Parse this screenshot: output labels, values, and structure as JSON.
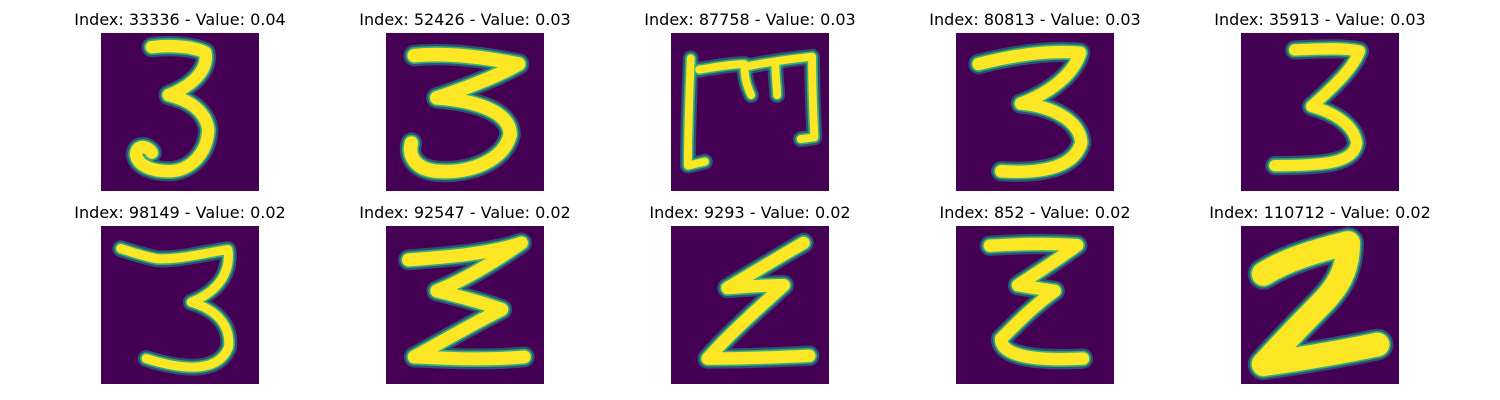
{
  "colors": {
    "background": "#440154",
    "stroke_core": "#fde725",
    "stroke_edge": "#35b779",
    "stroke_mid": "#21918c"
  },
  "panels": [
    {
      "title": "Index: 33336 - Value: 0.04",
      "glyph": "3"
    },
    {
      "title": "Index: 52426 - Value: 0.03",
      "glyph": "3"
    },
    {
      "title": "Index: 87758 - Value: 0.03",
      "glyph": "m"
    },
    {
      "title": "Index: 80813 - Value: 0.03",
      "glyph": "3"
    },
    {
      "title": "Index: 35913 - Value: 0.03",
      "glyph": "3"
    },
    {
      "title": "Index: 98149 - Value: 0.02",
      "glyph": "3"
    },
    {
      "title": "Index: 92547 - Value: 0.02",
      "glyph": "sigma"
    },
    {
      "title": "Index: 9293 - Value: 0.02",
      "glyph": "z"
    },
    {
      "title": "Index: 852 - Value: 0.02",
      "glyph": "z"
    },
    {
      "title": "Index: 110712 - Value: 0.02",
      "glyph": "2"
    }
  ]
}
